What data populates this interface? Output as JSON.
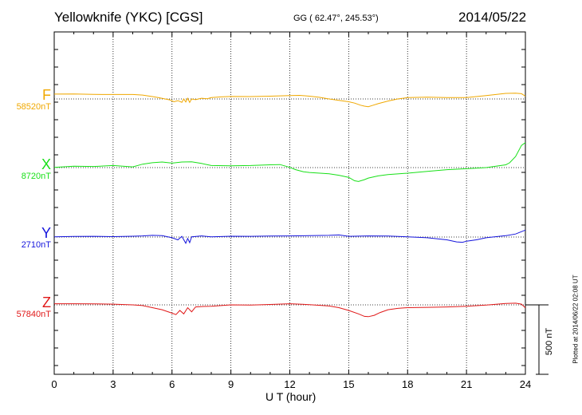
{
  "header": {
    "title": "Yellowknife (YKC)  [CGS]",
    "coords": "GG ( 62.47°, 245.53°)",
    "date": "2014/05/22"
  },
  "footer": {
    "xlabel": "U T (hour)",
    "scale_label": "500 nT",
    "plotted": "Plotted at 2014/06/22 02:08 UT"
  },
  "colors": {
    "F": "#f0a800",
    "X": "#18e018",
    "Y": "#1414dc",
    "Z": "#e01818"
  },
  "chart_data": {
    "type": "line",
    "x_ticks": [
      "0",
      "3",
      "6",
      "9",
      "12",
      "15",
      "18",
      "21",
      "24"
    ],
    "xlim": [
      0,
      24
    ],
    "xlabel": "U T (hour)",
    "scale_bar_nT": 500,
    "series": [
      {
        "name": "F",
        "baseline_label": "58520nT",
        "baseline": 58520,
        "x": [
          0,
          1,
          2,
          3,
          4,
          4.5,
          5,
          5.3,
          5.6,
          5.9,
          6.1,
          6.3,
          6.5,
          6.6,
          6.7,
          6.8,
          6.9,
          7.0,
          7.2,
          7.5,
          7.8,
          8,
          8.5,
          9,
          10,
          11,
          12,
          12.5,
          13,
          13.5,
          14,
          14.5,
          15,
          15.3,
          15.6,
          15.8,
          16,
          16.2,
          16.5,
          17,
          17.5,
          18,
          19,
          20,
          21,
          22,
          23,
          23.5,
          23.8,
          24
        ],
        "values": [
          58555,
          58556,
          58553,
          58552,
          58552,
          58548,
          58537,
          58530,
          58522,
          58513,
          58500,
          58508,
          58496,
          58520,
          58498,
          58525,
          58495,
          58520,
          58515,
          58525,
          58522,
          58530,
          58535,
          58538,
          58537,
          58540,
          58545,
          58546,
          58540,
          58532,
          58520,
          58510,
          58500,
          58490,
          58475,
          58468,
          58464,
          58473,
          58486,
          58505,
          58520,
          58530,
          58533,
          58530,
          58530,
          58545,
          58560,
          58562,
          58558,
          58540
        ]
      },
      {
        "name": "X",
        "baseline_label": "8720nT",
        "baseline": 8720,
        "x": [
          0,
          1,
          2,
          3,
          4,
          4.5,
          5,
          5.5,
          6,
          6.5,
          7,
          7.5,
          8,
          9,
          10,
          11,
          11.5,
          12,
          12.3,
          12.7,
          13,
          14,
          14.5,
          15,
          15.3,
          15.5,
          15.8,
          16,
          16.5,
          17,
          18,
          19,
          20,
          21,
          22,
          23,
          23.2,
          23.5,
          23.8,
          24
        ],
        "values": [
          8722,
          8730,
          8728,
          8735,
          8725,
          8745,
          8755,
          8760,
          8752,
          8760,
          8762,
          8750,
          8735,
          8733,
          8735,
          8740,
          8742,
          8722,
          8705,
          8690,
          8685,
          8675,
          8665,
          8650,
          8625,
          8620,
          8633,
          8645,
          8660,
          8670,
          8680,
          8693,
          8705,
          8712,
          8720,
          8740,
          8755,
          8800,
          8880,
          8900
        ]
      },
      {
        "name": "Y",
        "baseline_label": "2710nT",
        "baseline": 2710,
        "x": [
          0,
          1,
          2,
          3,
          4,
          4.5,
          5,
          5.5,
          6,
          6.3,
          6.5,
          6.7,
          6.8,
          6.9,
          7.0,
          7.5,
          8,
          9,
          10,
          11,
          12,
          13,
          14,
          14.5,
          15,
          16,
          17,
          18,
          19,
          20,
          20.5,
          20.8,
          21,
          21.5,
          22,
          23,
          23.5,
          24
        ],
        "values": [
          2712,
          2714,
          2715,
          2713,
          2716,
          2718,
          2722,
          2720,
          2705,
          2690,
          2715,
          2665,
          2700,
          2670,
          2712,
          2718,
          2712,
          2716,
          2715,
          2717,
          2718,
          2720,
          2722,
          2725,
          2715,
          2718,
          2717,
          2712,
          2705,
          2690,
          2675,
          2672,
          2680,
          2690,
          2705,
          2720,
          2732,
          2760
        ]
      },
      {
        "name": "Z",
        "baseline_label": "57840nT",
        "baseline": 57840,
        "x": [
          0,
          1,
          2,
          3,
          4,
          4.5,
          5,
          5.5,
          6,
          6.2,
          6.4,
          6.6,
          6.8,
          7.0,
          7.2,
          7.5,
          8,
          9,
          10,
          11,
          12,
          13,
          14,
          14.5,
          15,
          15.5,
          15.8,
          16,
          16.3,
          16.6,
          17,
          17.5,
          18,
          19,
          20,
          21,
          22,
          23,
          23.5,
          23.8,
          24
        ],
        "values": [
          57848,
          57848,
          57847,
          57845,
          57840,
          57835,
          57820,
          57805,
          57780,
          57770,
          57800,
          57775,
          57820,
          57790,
          57825,
          57828,
          57830,
          57840,
          57838,
          57843,
          57848,
          57842,
          57832,
          57820,
          57800,
          57775,
          57757,
          57755,
          57765,
          57785,
          57805,
          57815,
          57820,
          57822,
          57825,
          57830,
          57838,
          57850,
          57852,
          57845,
          57818
        ]
      }
    ]
  }
}
